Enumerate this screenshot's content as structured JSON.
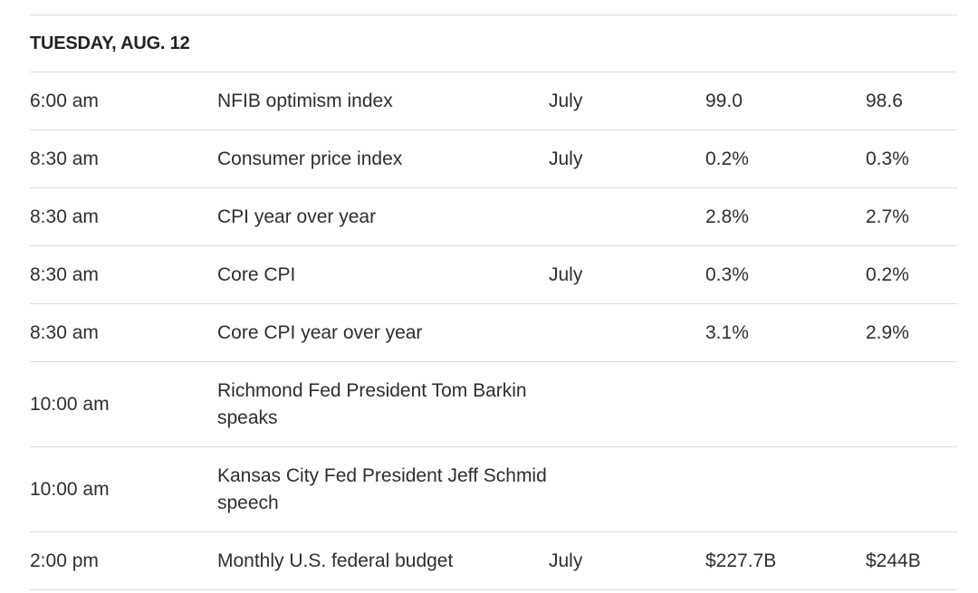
{
  "day_heading": "TUESDAY, AUG. 12",
  "rows": [
    {
      "time": "6:00 am",
      "event": "NFIB optimism index",
      "period": "July",
      "forecast": "99.0",
      "previous": "98.6"
    },
    {
      "time": "8:30 am",
      "event": "Consumer price index",
      "period": "July",
      "forecast": "0.2%",
      "previous": "0.3%"
    },
    {
      "time": "8:30 am",
      "event": "CPI year over year",
      "period": "",
      "forecast": "2.8%",
      "previous": "2.7%"
    },
    {
      "time": "8:30 am",
      "event": "Core CPI",
      "period": "July",
      "forecast": "0.3%",
      "previous": "0.2%"
    },
    {
      "time": "8:30 am",
      "event": "Core CPI year over year",
      "period": "",
      "forecast": "3.1%",
      "previous": "2.9%"
    },
    {
      "time": "10:00 am",
      "event": "Richmond Fed President Tom Barkin speaks",
      "period": "",
      "forecast": "",
      "previous": ""
    },
    {
      "time": "10:00 am",
      "event": "Kansas City Fed President Jeff Schmid speech",
      "period": "",
      "forecast": "",
      "previous": ""
    },
    {
      "time": "2:00 pm",
      "event": "Monthly U.S. federal budget",
      "period": "July",
      "forecast": "$227.7B",
      "previous": "$244B"
    }
  ]
}
